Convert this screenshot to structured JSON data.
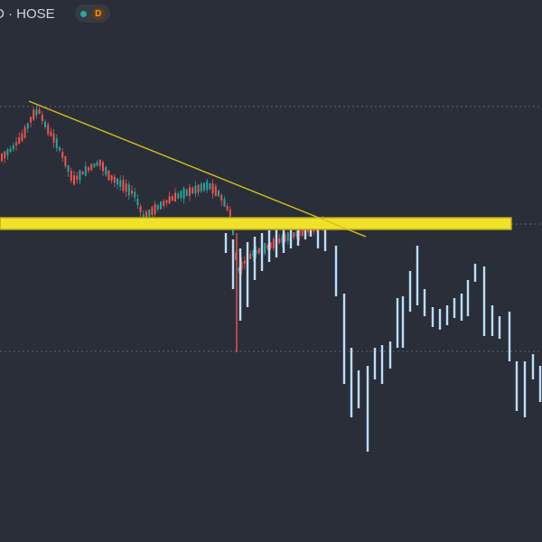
{
  "header": {
    "symbol_text": "D · HOSE",
    "market_status": "market-open-dot",
    "interval_badge": "D"
  },
  "colors": {
    "background": "#2a2e39",
    "up_candle": "#26a69a",
    "down_candle": "#ef5350",
    "projection_bar": "#bbdefb",
    "trendline": "#d4c21a",
    "zone_fill": "#f0e12a",
    "zone_border": "#b8a814",
    "dotted_line": "#5d6270"
  }
}
